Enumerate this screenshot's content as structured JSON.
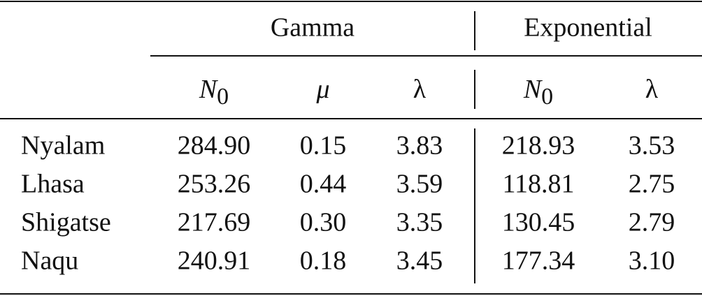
{
  "table": {
    "groups": [
      "Gamma",
      "Exponential"
    ],
    "columns": [
      {
        "symbol": "N",
        "subscript": "0"
      },
      {
        "symbol": "μ"
      },
      {
        "symbol": "λ"
      },
      {
        "symbol": "N",
        "subscript": "0"
      },
      {
        "symbol": "λ"
      }
    ],
    "rows": [
      [
        "Nyalam",
        "284.90",
        "0.15",
        "3.83",
        "218.93",
        "3.53"
      ],
      [
        "Lhasa",
        "253.26",
        "0.44",
        "3.59",
        "118.81",
        "2.75"
      ],
      [
        "Shigatse",
        "217.69",
        "0.30",
        "3.35",
        "130.45",
        "2.79"
      ],
      [
        "Naqu",
        "240.91",
        "0.18",
        "3.45",
        "177.34",
        "3.10"
      ]
    ]
  }
}
